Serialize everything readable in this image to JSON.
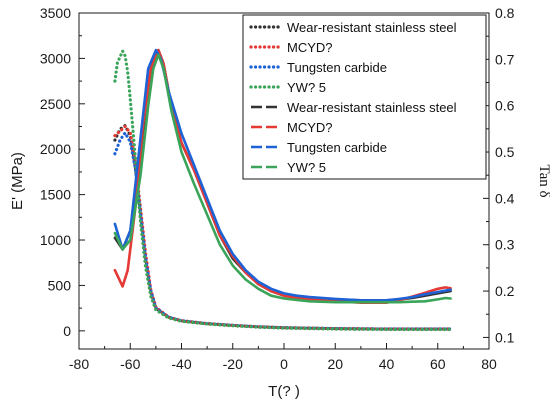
{
  "chart_data": {
    "type": "line",
    "xlabel": "T(?  )",
    "ylabel": "E' (MPa)",
    "y2label": "Tan δ",
    "xlim": [
      -80,
      80
    ],
    "ylim": [
      -200,
      3500
    ],
    "y2lim": [
      0.075,
      0.8
    ],
    "xticks": [
      -80,
      -60,
      -40,
      -20,
      0,
      20,
      40,
      60,
      80
    ],
    "yticks": [
      0,
      500,
      1000,
      1500,
      2000,
      2500,
      3000,
      3500
    ],
    "y2ticks": [
      0.1,
      0.2,
      0.3,
      0.4,
      0.5,
      0.6,
      0.7,
      0.8
    ],
    "grid": false,
    "legend_position": "top-right",
    "series": [
      {
        "name": "Wear-resistant stainless steel",
        "axis": "left",
        "style": "dotted",
        "color": "#333333",
        "x": [
          -66,
          -64,
          -62,
          -60,
          -58,
          -56,
          -54,
          -52,
          -50,
          -45,
          -40,
          -30,
          -20,
          -10,
          0,
          20,
          40,
          60,
          65
        ],
        "y": [
          2100,
          2220,
          2260,
          2150,
          1800,
          1300,
          800,
          430,
          250,
          150,
          110,
          80,
          60,
          45,
          35,
          25,
          20,
          20,
          20
        ]
      },
      {
        "name": "MCYD?",
        "axis": "left",
        "style": "dotted",
        "color": "#e53935",
        "x": [
          -66,
          -64,
          -62,
          -60,
          -58,
          -56,
          -54,
          -52,
          -50,
          -45,
          -40,
          -30,
          -20,
          -10,
          0,
          20,
          40,
          60,
          65
        ],
        "y": [
          2150,
          2200,
          2250,
          2180,
          1850,
          1350,
          850,
          450,
          260,
          150,
          110,
          80,
          60,
          45,
          35,
          25,
          20,
          20,
          20
        ]
      },
      {
        "name": "Tungsten carbide",
        "axis": "left",
        "style": "dotted",
        "color": "#1e63d6",
        "x": [
          -66,
          -64,
          -62,
          -60,
          -58,
          -56,
          -54,
          -52,
          -50,
          -45,
          -40,
          -30,
          -20,
          -10,
          0,
          20,
          40,
          60,
          65
        ],
        "y": [
          1950,
          2100,
          2180,
          2080,
          1780,
          1300,
          800,
          440,
          250,
          150,
          110,
          80,
          60,
          45,
          35,
          25,
          20,
          20,
          20
        ]
      },
      {
        "name": "YW?   5",
        "axis": "left",
        "style": "dotted",
        "color": "#3aa55a",
        "x": [
          -66,
          -65,
          -63,
          -62,
          -61,
          -60,
          -58,
          -56,
          -54,
          -52,
          -50,
          -45,
          -40,
          -30,
          -20,
          -10,
          0,
          20,
          40,
          60,
          65
        ],
        "y": [
          2750,
          2950,
          3080,
          3030,
          2850,
          2550,
          1900,
          1200,
          700,
          380,
          230,
          140,
          105,
          75,
          55,
          40,
          30,
          20,
          15,
          15,
          15
        ]
      },
      {
        "name": "Wear-resistant stainless steel",
        "axis": "right",
        "style": "dashed",
        "color": "#333333",
        "x": [
          -66,
          -63,
          -60,
          -57,
          -54,
          -51,
          -49,
          -47,
          -44,
          -40,
          -35,
          -30,
          -25,
          -20,
          -15,
          -10,
          -5,
          0,
          5,
          10,
          20,
          30,
          40,
          45,
          50,
          55,
          60,
          65
        ],
        "y": [
          0.315,
          0.29,
          0.33,
          0.44,
          0.6,
          0.7,
          0.72,
          0.69,
          0.6,
          0.52,
          0.46,
          0.39,
          0.32,
          0.27,
          0.24,
          0.215,
          0.2,
          0.19,
          0.187,
          0.185,
          0.182,
          0.18,
          0.18,
          0.182,
          0.185,
          0.19,
          0.195,
          0.2
        ]
      },
      {
        "name": "MCYD?",
        "axis": "right",
        "style": "dashed",
        "color": "#e53935",
        "x": [
          -66,
          -63,
          -61,
          -58,
          -55,
          -52,
          -49,
          -47,
          -44,
          -40,
          -35,
          -30,
          -25,
          -20,
          -15,
          -10,
          -5,
          0,
          5,
          10,
          20,
          30,
          40,
          45,
          50,
          55,
          60,
          63,
          65
        ],
        "y": [
          0.245,
          0.21,
          0.245,
          0.38,
          0.56,
          0.68,
          0.72,
          0.69,
          0.6,
          0.52,
          0.46,
          0.39,
          0.32,
          0.275,
          0.24,
          0.215,
          0.2,
          0.19,
          0.185,
          0.182,
          0.178,
          0.175,
          0.175,
          0.18,
          0.188,
          0.196,
          0.205,
          0.208,
          0.206
        ]
      },
      {
        "name": "Tungsten carbide",
        "axis": "right",
        "style": "dashed",
        "color": "#1e63d6",
        "x": [
          -66,
          -63,
          -60,
          -56,
          -53,
          -50,
          -48,
          -45,
          -40,
          -35,
          -30,
          -25,
          -20,
          -15,
          -10,
          -5,
          0,
          5,
          10,
          20,
          30,
          40,
          45,
          50,
          55,
          60,
          65
        ],
        "y": [
          0.345,
          0.29,
          0.33,
          0.53,
          0.68,
          0.72,
          0.7,
          0.63,
          0.54,
          0.47,
          0.4,
          0.33,
          0.28,
          0.245,
          0.22,
          0.205,
          0.195,
          0.19,
          0.187,
          0.183,
          0.18,
          0.18,
          0.183,
          0.187,
          0.193,
          0.198,
          0.203
        ]
      },
      {
        "name": "YW?   5",
        "axis": "right",
        "style": "dashed",
        "color": "#3aa55a",
        "x": [
          -66,
          -63,
          -60,
          -56,
          -53,
          -51,
          -49,
          -47,
          -44,
          -40,
          -35,
          -30,
          -25,
          -20,
          -15,
          -10,
          -5,
          0,
          5,
          10,
          20,
          30,
          40,
          45,
          50,
          55,
          60,
          63,
          65
        ],
        "y": [
          0.325,
          0.29,
          0.31,
          0.45,
          0.6,
          0.68,
          0.71,
          0.68,
          0.59,
          0.5,
          0.43,
          0.365,
          0.3,
          0.255,
          0.225,
          0.205,
          0.19,
          0.184,
          0.181,
          0.178,
          0.176,
          0.176,
          0.176,
          0.176,
          0.177,
          0.178,
          0.182,
          0.185,
          0.184
        ]
      }
    ]
  }
}
